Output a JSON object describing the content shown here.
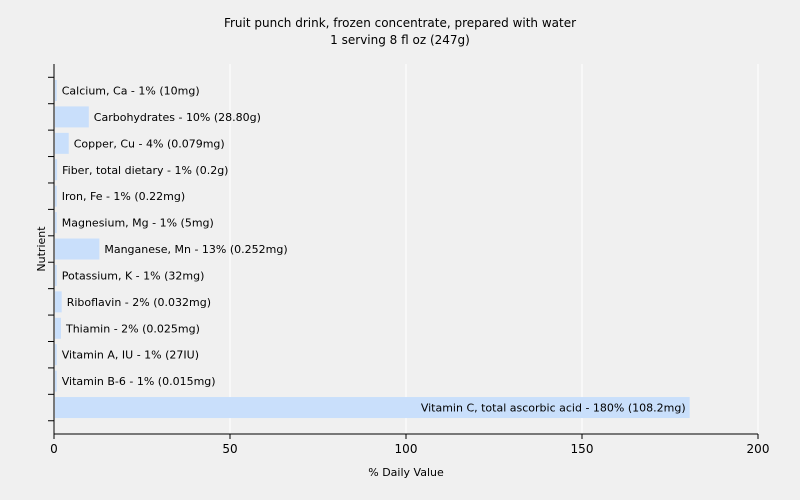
{
  "chart_data": {
    "type": "bar",
    "orientation": "horizontal",
    "title": "Fruit punch drink, frozen concentrate, prepared with water",
    "subtitle": "1 serving 8 fl oz (247g)",
    "xlabel": "% Daily Value",
    "ylabel": "Nutrient",
    "xlim": [
      0,
      200
    ],
    "xticks": [
      0,
      50,
      100,
      150,
      200
    ],
    "grid": true,
    "bar_color": "#c9dffb",
    "categories": [
      "Calcium, Ca",
      "Carbohydrates",
      "Copper, Cu",
      "Fiber, total dietary",
      "Iron, Fe",
      "Magnesium, Mg",
      "Manganese, Mn",
      "Potassium, K",
      "Riboflavin",
      "Thiamin",
      "Vitamin A, IU",
      "Vitamin B-6",
      "Vitamin C, total ascorbic acid"
    ],
    "values": [
      0.5,
      9.6,
      3.9,
      0.6,
      0.5,
      0.5,
      12.6,
      0.5,
      1.9,
      1.7,
      0.5,
      0.5,
      180.3
    ],
    "labels": [
      "Calcium, Ca - 1% (10mg)",
      "Carbohydrates - 10% (28.80g)",
      "Copper, Cu - 4% (0.079mg)",
      "Fiber, total dietary - 1% (0.2g)",
      "Iron, Fe - 1% (0.22mg)",
      "Magnesium, Mg - 1% (5mg)",
      "Manganese, Mn - 13% (0.252mg)",
      "Potassium, K - 1% (32mg)",
      "Riboflavin - 2% (0.032mg)",
      "Thiamin - 2% (0.025mg)",
      "Vitamin A, IU - 1% (27IU)",
      "Vitamin B-6 - 1% (0.015mg)",
      "Vitamin C, total ascorbic acid - 180% (108.2mg)"
    ]
  }
}
